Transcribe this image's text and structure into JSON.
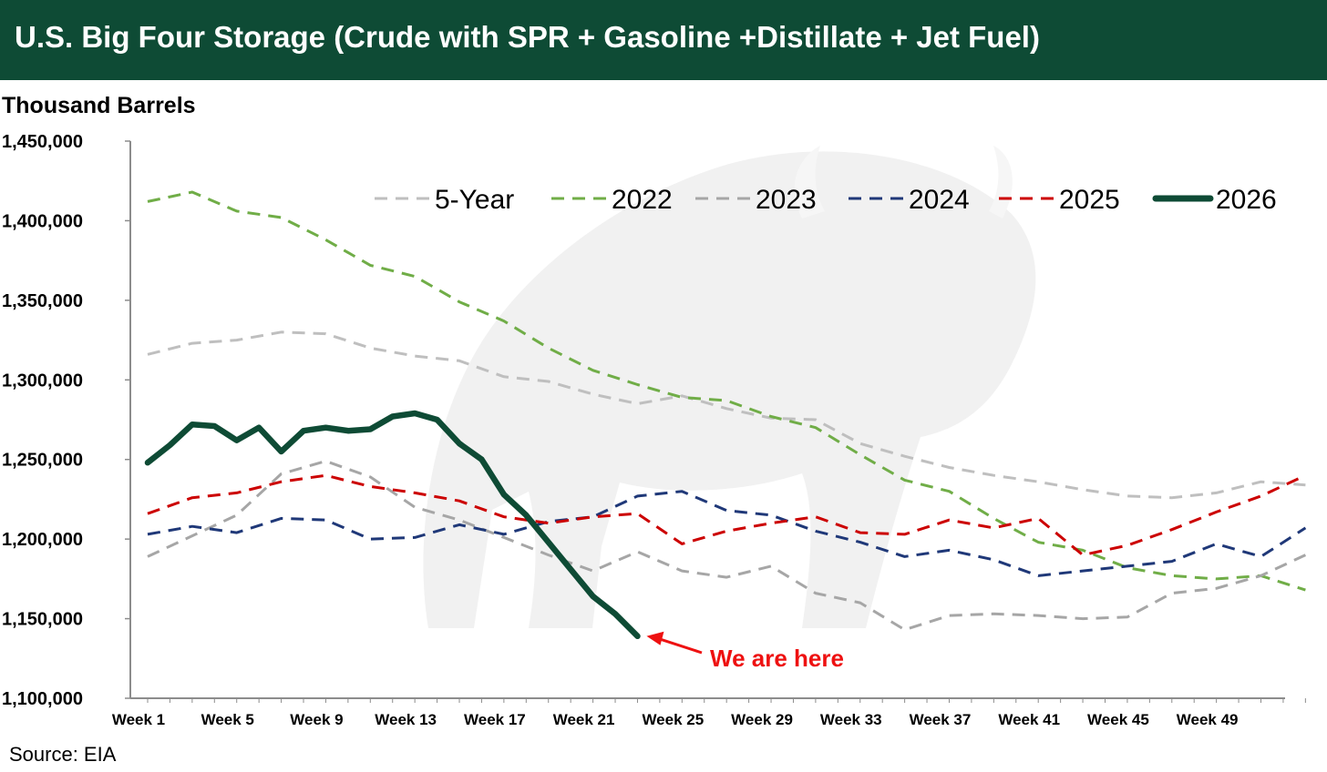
{
  "header": {
    "title": "U.S. Big Four Storage (Crude with SPR + Gasoline +Distillate + Jet Fuel)"
  },
  "footer": {
    "source": "Source: EIA"
  },
  "chart_data": {
    "type": "line",
    "title": "U.S. Big Four Storage (Crude with SPR + Gasoline +Distillate + Jet Fuel)",
    "ylabel": "Thousand Barrels",
    "xlabel": "",
    "ylim": [
      1100000,
      1450000
    ],
    "yticks": [
      1100000,
      1150000,
      1200000,
      1250000,
      1300000,
      1350000,
      1400000,
      1450000
    ],
    "ytick_labels": [
      "1,100,000",
      "1,150,000",
      "1,200,000",
      "1,250,000",
      "1,300,000",
      "1,350,000",
      "1,400,000",
      "1,450,000"
    ],
    "xticks": [
      1,
      5,
      9,
      13,
      17,
      21,
      25,
      29,
      33,
      37,
      41,
      45,
      49
    ],
    "xtick_labels": [
      "Week 1",
      "Week 5",
      "Week 9",
      "Week 13",
      "Week 17",
      "Week 21",
      "Week 25",
      "Week 29",
      "Week 33",
      "Week 37",
      "Week 41",
      "Week 45",
      "Week 49"
    ],
    "xlim": [
      1,
      53
    ],
    "grid": false,
    "legend": "top-right",
    "series": [
      {
        "name": "5-Year",
        "color": "#bfbfbf",
        "style": "dashed",
        "x": [
          1,
          3,
          5,
          7,
          9,
          11,
          13,
          15,
          17,
          19,
          21,
          23,
          25,
          27,
          29,
          31,
          33,
          35,
          37,
          39,
          41,
          43,
          45,
          47,
          49,
          51,
          53
        ],
        "values": [
          1316000,
          1323000,
          1325000,
          1330000,
          1329000,
          1320000,
          1315000,
          1312000,
          1302000,
          1299000,
          1291000,
          1285000,
          1290000,
          1282000,
          1276000,
          1275000,
          1260000,
          1252000,
          1245000,
          1240000,
          1236000,
          1231000,
          1227000,
          1226000,
          1229000,
          1236000,
          1234000
        ]
      },
      {
        "name": "2022",
        "color": "#70ad47",
        "style": "dashed",
        "x": [
          1,
          3,
          5,
          7,
          9,
          11,
          13,
          15,
          17,
          19,
          21,
          23,
          25,
          27,
          29,
          31,
          33,
          35,
          37,
          39,
          41,
          43,
          45,
          47,
          49,
          51,
          53
        ],
        "values": [
          1412000,
          1418000,
          1406000,
          1402000,
          1388000,
          1372000,
          1365000,
          1349000,
          1337000,
          1320000,
          1306000,
          1297000,
          1289000,
          1287000,
          1277000,
          1270000,
          1253000,
          1237000,
          1230000,
          1213000,
          1198000,
          1193000,
          1182000,
          1177000,
          1175000,
          1177000,
          1168000
        ]
      },
      {
        "name": "2023",
        "color": "#a6a6a6",
        "style": "dashed",
        "x": [
          1,
          3,
          5,
          7,
          9,
          11,
          13,
          15,
          17,
          19,
          21,
          23,
          25,
          27,
          29,
          31,
          33,
          35,
          37,
          39,
          41,
          43,
          45,
          47,
          49,
          51,
          53
        ],
        "values": [
          1189000,
          1202000,
          1215000,
          1241000,
          1249000,
          1239000,
          1220000,
          1212000,
          1201000,
          1190000,
          1180000,
          1192000,
          1180000,
          1176000,
          1183000,
          1166000,
          1160000,
          1143000,
          1152000,
          1153000,
          1152000,
          1150000,
          1151000,
          1166000,
          1169000,
          1177000,
          1190000
        ]
      },
      {
        "name": "2024",
        "color": "#1f3878",
        "style": "dashed",
        "x": [
          1,
          3,
          5,
          7,
          9,
          11,
          13,
          15,
          17,
          19,
          21,
          23,
          25,
          27,
          29,
          31,
          33,
          35,
          37,
          39,
          41,
          43,
          45,
          47,
          49,
          51,
          53
        ],
        "values": [
          1203000,
          1208000,
          1204000,
          1213000,
          1212000,
          1200000,
          1201000,
          1209000,
          1203000,
          1211000,
          1214000,
          1227000,
          1230000,
          1218000,
          1215000,
          1205000,
          1198000,
          1189000,
          1193000,
          1187000,
          1177000,
          1180000,
          1183000,
          1186000,
          1197000,
          1189000,
          1207000
        ]
      },
      {
        "name": "2025",
        "color": "#cc0000",
        "style": "dashed",
        "x": [
          1,
          3,
          5,
          7,
          9,
          11,
          13,
          15,
          17,
          19,
          21,
          23,
          25,
          27,
          29,
          31,
          33,
          35,
          37,
          39,
          41,
          43,
          45,
          47,
          49,
          51,
          53
        ],
        "values": [
          1216000,
          1226000,
          1229000,
          1236000,
          1240000,
          1233000,
          1229000,
          1224000,
          1214000,
          1210000,
          1214000,
          1216000,
          1197000,
          1205000,
          1210000,
          1214000,
          1204000,
          1203000,
          1212000,
          1207000,
          1213000,
          1190000,
          1196000,
          1206000,
          1217000,
          1227000,
          1240000
        ]
      },
      {
        "name": "2026",
        "color": "#0e4b35",
        "style": "solid",
        "x": [
          1,
          2,
          3,
          4,
          5,
          6,
          7,
          8,
          9,
          10,
          11,
          12,
          13,
          14,
          15,
          16,
          17,
          18,
          19,
          20,
          21,
          22,
          23
        ],
        "values": [
          1248000,
          1259000,
          1272000,
          1271000,
          1262000,
          1270000,
          1255000,
          1268000,
          1270000,
          1268000,
          1269000,
          1277000,
          1279000,
          1275000,
          1260000,
          1250000,
          1228000,
          1215000,
          1198000,
          1181000,
          1164000,
          1153000,
          1139000
        ]
      }
    ],
    "annotations": [
      {
        "text": "We are here",
        "x": 23,
        "y": 1139000
      }
    ]
  }
}
